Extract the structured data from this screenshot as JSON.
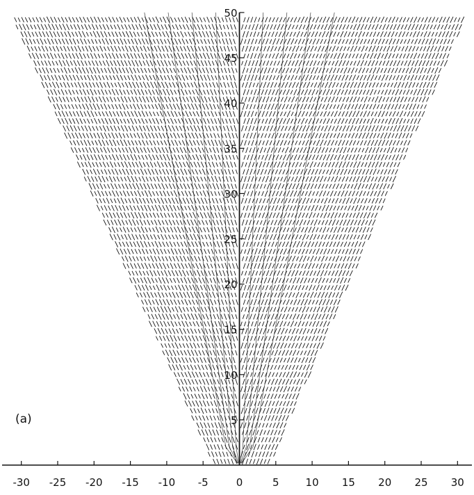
{
  "chart_data": {
    "type": "line",
    "panel_label": "(a)",
    "x_ticks": [
      -30,
      -25,
      -20,
      -15,
      -10,
      -5,
      0,
      5,
      10,
      15,
      20,
      25,
      30
    ],
    "y_ticks": [
      5,
      10,
      15,
      20,
      25,
      30,
      35,
      40,
      45,
      50
    ],
    "xlim": [
      -31.5,
      31.5
    ],
    "ylim": [
      0,
      50
    ],
    "x_tick_labels": [
      "-30",
      "-25",
      "-20",
      "-15",
      "-10",
      "-5",
      "0",
      "5",
      "10",
      "15",
      "20",
      "25",
      "30"
    ],
    "y_tick_labels": [
      "5",
      "10",
      "15",
      "20",
      "25",
      "30",
      "35",
      "40",
      "45",
      "50"
    ],
    "vector_field": {
      "envelope_left": [
        [
          -3.5,
          0
        ],
        [
          -31.5,
          50
        ]
      ],
      "envelope_right": [
        [
          4.2,
          0
        ],
        [
          31.5,
          50
        ]
      ],
      "center_x": 0,
      "grid_step_x": 0.5,
      "grid_step_y": 0.8,
      "color": "#111111"
    },
    "grid": false
  }
}
